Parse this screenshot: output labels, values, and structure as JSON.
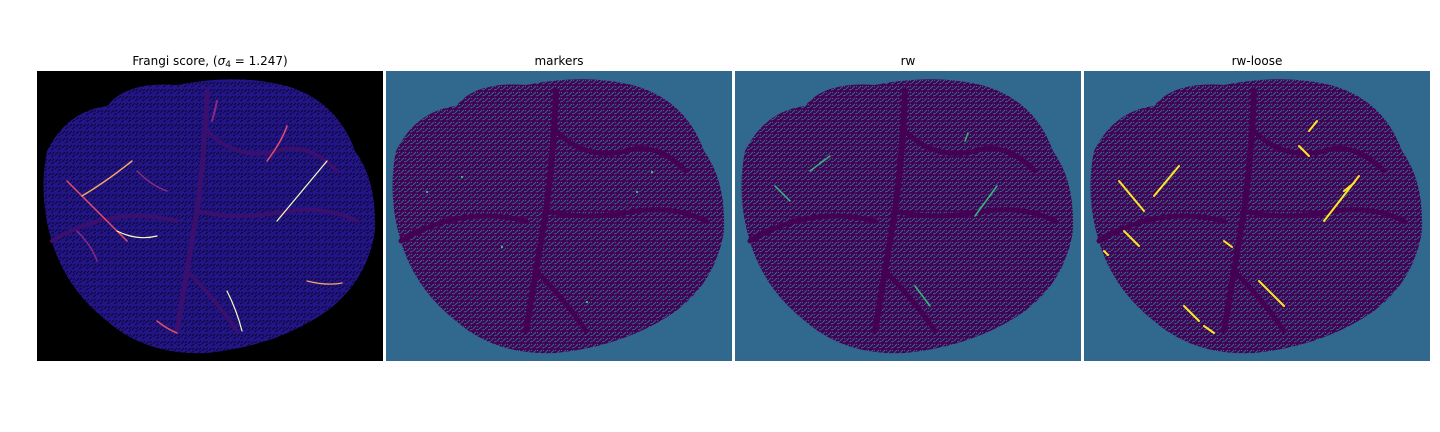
{
  "panels": [
    {
      "title_prefix": "Frangi score, (",
      "title_sigma": "σ",
      "title_subscript": "4",
      "title_suffix": " = 1.247)",
      "image": "frangi vesselness response of a retina (magma colormap)",
      "background_color": "#000000",
      "tissue_color": "#1e1180",
      "vessel_color": "#3a0f6e",
      "highlight_colors": [
        "#fcfdbf",
        "#f6a66b",
        "#e24d6b",
        "#8c2981"
      ]
    },
    {
      "title": "markers",
      "image": "seed marker map (viridis colormap)",
      "background_color": "#31688e",
      "tissue_color": "#440154",
      "marker_color": "#35b779"
    },
    {
      "title": "rw",
      "image": "random walker segmentation (viridis colormap)",
      "background_color": "#31688e",
      "tissue_color": "#440154",
      "segment_color": "#35b779"
    },
    {
      "title": "rw-loose",
      "image": "loose random walker segmentation (viridis colormap)",
      "background_color": "#31688e",
      "tissue_color": "#440154",
      "segment_color": "#fde725"
    }
  ]
}
